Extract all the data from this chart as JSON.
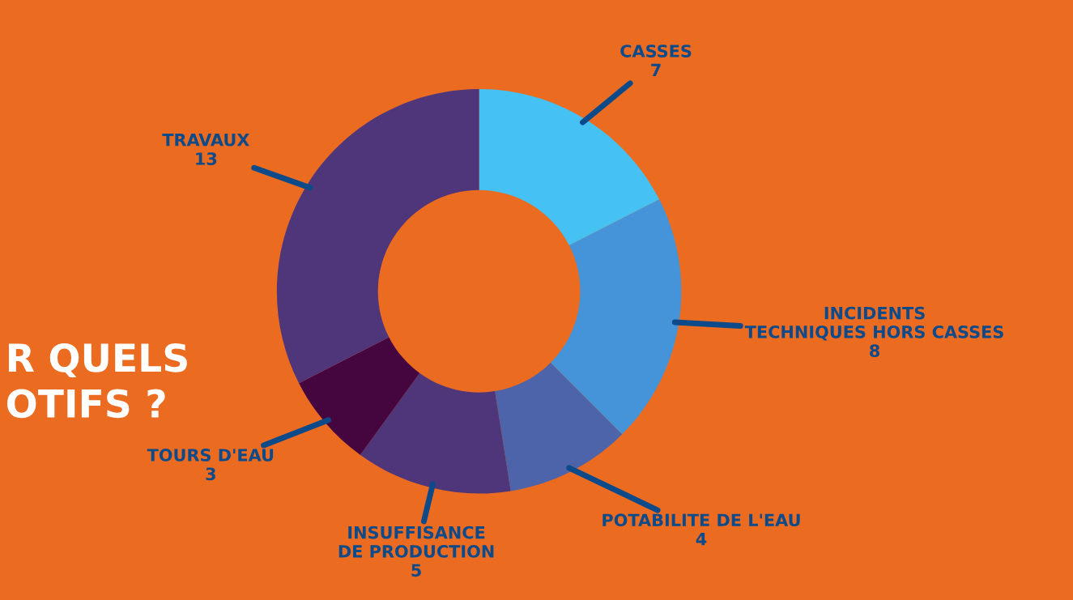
{
  "chart_data": {
    "type": "donut",
    "categories": [
      "CASSES",
      "INCIDENTS\nTECHNIQUES HORS CASSES",
      "POTABILITE DE L'EAU",
      "INSUFFISANCE\nDE PRODUCTION",
      "TOURS D'EAU",
      "TRAVAUX"
    ],
    "values": [
      7,
      8,
      4,
      5,
      3,
      13
    ],
    "colors": [
      "#45c1f4",
      "#4593d8",
      "#4d64ab",
      "#4f367a",
      "#45053f",
      "#4f367a"
    ],
    "data_labels": true,
    "annotations": [
      "R QUELS\nOTIFS ?"
    ]
  }
}
